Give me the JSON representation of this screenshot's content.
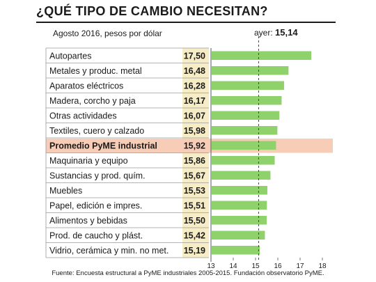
{
  "title": "¿QUÉ TIPO DE CAMBIO NECESITAN?",
  "subtitle": "Agosto 2016, pesos por dólar",
  "reference": {
    "label": "ayer:",
    "value": "15,14",
    "x": 15.14
  },
  "footer": "Fuente: Encuesta estructural a PyME industriales 2005-2015. Fundación observatorio PyME.",
  "colors": {
    "bar": "#8fd16b",
    "highlight_row": "#f7cdb8",
    "value_cell": "#f6ecc6",
    "text": "#1a1a1a"
  },
  "chart_data": {
    "type": "bar",
    "orientation": "horizontal",
    "title": "¿QUÉ TIPO DE CAMBIO NECESITAN?",
    "subtitle": "Agosto 2016, pesos por dólar",
    "categories": [
      "Autopartes",
      "Metales y produc. metal",
      "Aparatos eléctricos",
      "Madera, corcho y paja",
      "Otras actividades",
      "Textiles, cuero y calzado",
      "Promedio PyME industrial",
      "Maquinaria y equipo",
      "Sustancias y prod. quím.",
      "Muebles",
      "Papel, edición e impres.",
      "Alimentos y bebidas",
      "Prod. de caucho y plást.",
      "Vidrio, cerámica y min. no met."
    ],
    "values": [
      17.5,
      16.48,
      16.28,
      16.17,
      16.07,
      15.98,
      15.92,
      15.86,
      15.67,
      15.53,
      15.51,
      15.5,
      15.42,
      15.19
    ],
    "value_labels": [
      "17,50",
      "16,48",
      "16,28",
      "16,17",
      "16,07",
      "15,98",
      "15,92",
      "15,86",
      "15,67",
      "15,53",
      "15,51",
      "15,50",
      "15,42",
      "15,19"
    ],
    "highlight_index": 6,
    "xlim": [
      13,
      18
    ],
    "xticks": [
      13,
      14,
      15,
      16,
      17,
      18
    ],
    "reference_line": 15.14
  }
}
